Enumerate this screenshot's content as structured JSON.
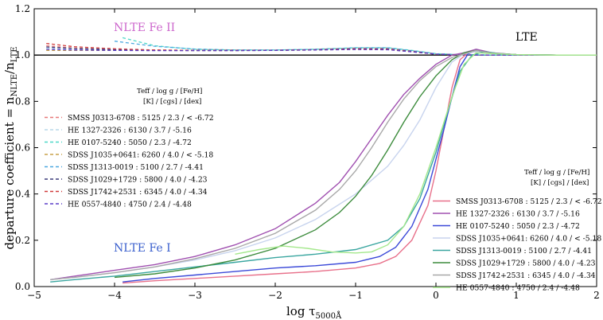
{
  "chart_data": {
    "type": "line",
    "xlabel_prefix": "log τ",
    "xlabel_sub": "5000Å",
    "ylabel_prefix": "departure coefficient = n",
    "ylabel_sub1": "NLTE",
    "ylabel_mid": "/n",
    "ylabel_sub2": "LTE",
    "xlim": [
      -5,
      2
    ],
    "ylim": [
      0.0,
      1.2
    ],
    "xticks": [
      "−5",
      "−4",
      "−3",
      "−2",
      "−1",
      "0",
      "1",
      "2"
    ],
    "xtick_values": [
      -5,
      -4,
      -3,
      -2,
      -1,
      0,
      1,
      2
    ],
    "yticks": [
      "0.0",
      "0.2",
      "0.4",
      "0.6",
      "0.8",
      "1.0",
      "1.2"
    ],
    "ytick_values": [
      0.0,
      0.2,
      0.4,
      0.6,
      0.8,
      1.0,
      1.2
    ],
    "annotations": {
      "fe2": {
        "text": "NLTE Fe II",
        "color": "#cc66cc"
      },
      "fe1": {
        "text": "NLTE Fe I",
        "color": "#3a5fcd"
      },
      "lte": {
        "text": "LTE",
        "color": "#000000"
      }
    },
    "legend_header": {
      "line1": "Teff  /  log g  /  [Fe/H]",
      "line2": "[K]  /  [cgs]  /  [dex]"
    },
    "fe2_series": [
      {
        "name": "SMSS J0313-6708 : 5125 / 2.3 / < -6.72",
        "color": "#e87979",
        "x": [
          -4.85,
          -4.5,
          -4,
          -3.5,
          -3,
          -2.5,
          -2,
          -1.5,
          -1,
          -0.6,
          -0.3,
          0,
          0.3,
          0.5,
          0.7,
          1,
          1.5,
          2
        ],
        "y": [
          1.04,
          1.03,
          1.025,
          1.022,
          1.02,
          1.02,
          1.021,
          1.024,
          1.03,
          1.03,
          1.018,
          1.005,
          1.002,
          1.001,
          1.0,
          1.0,
          1.0,
          1.0
        ]
      },
      {
        "name": "HE 1327-2326 : 6130 / 3.7 / -5.16",
        "color": "#b9d9e8",
        "x": [
          -4.85,
          -4.5,
          -4,
          -3.5,
          -3,
          -2.5,
          -2,
          -1.5,
          -1,
          -0.6,
          -0.3,
          0,
          0.3,
          0.5,
          0.7,
          1,
          1.5,
          2
        ],
        "y": [
          1.03,
          1.028,
          1.024,
          1.021,
          1.02,
          1.02,
          1.021,
          1.024,
          1.028,
          1.026,
          1.016,
          1.004,
          1.002,
          1.001,
          1.0,
          1.0,
          1.0,
          1.0
        ]
      },
      {
        "name": "HE 0107-5240 : 5050 / 2.3 / -4.72",
        "color": "#4fd8c8",
        "x": [
          -3.9,
          -3.5,
          -3,
          -2.5,
          -2,
          -1.5,
          -1,
          -0.6,
          -0.3,
          0,
          0.3,
          0.5,
          0.7,
          1,
          1.5,
          2
        ],
        "y": [
          1.075,
          1.04,
          1.025,
          1.022,
          1.022,
          1.025,
          1.032,
          1.032,
          1.02,
          1.006,
          1.002,
          1.001,
          1.0,
          1.0,
          1.0,
          1.0
        ]
      },
      {
        "name": "SDSS J1035+0641: 6260 / 4.0 / < -5.18",
        "color": "#c9a24a",
        "x": [
          -4.85,
          -4.5,
          -4,
          -3.5,
          -3,
          -2.5,
          -2,
          -1.5,
          -1,
          -0.6,
          -0.3,
          0,
          0.3,
          0.5,
          0.7,
          1,
          1.5,
          2
        ],
        "y": [
          1.02,
          1.02,
          1.02,
          1.02,
          1.019,
          1.019,
          1.02,
          1.022,
          1.025,
          1.024,
          1.014,
          1.004,
          1.001,
          1.0,
          1.0,
          1.0,
          1.0,
          1.0
        ]
      },
      {
        "name": "SDSS J1313-0019 : 5100 / 2.7 / -4.41",
        "color": "#4aa8e0",
        "x": [
          -4.0,
          -3.5,
          -3,
          -2.5,
          -2,
          -1.5,
          -1,
          -0.6,
          -0.3,
          0,
          0.3,
          0.5,
          0.7,
          1,
          1.5,
          2
        ],
        "y": [
          1.06,
          1.038,
          1.026,
          1.022,
          1.022,
          1.025,
          1.031,
          1.031,
          1.019,
          1.005,
          1.002,
          1.001,
          1.0,
          1.0,
          1.0,
          1.0
        ]
      },
      {
        "name": "SDSS J1029+1729 : 5800 / 4.0 / -4.23",
        "color": "#3b3b7a",
        "x": [
          -4.85,
          -4.5,
          -4,
          -3.5,
          -3,
          -2.5,
          -2,
          -1.5,
          -1,
          -0.6,
          -0.3,
          0,
          0.3,
          0.5,
          0.7,
          1,
          1.5,
          2
        ],
        "y": [
          1.035,
          1.028,
          1.023,
          1.021,
          1.02,
          1.02,
          1.021,
          1.023,
          1.027,
          1.026,
          1.016,
          1.004,
          1.001,
          1.0,
          1.0,
          1.0,
          1.0,
          1.0
        ]
      },
      {
        "name": "SDSS J1742+2531 : 6345 / 4.0 / -4.34",
        "color": "#d03a3a",
        "x": [
          -4.85,
          -4.5,
          -4,
          -3.5,
          -3,
          -2.5,
          -2,
          -1.5,
          -1,
          -0.6,
          -0.3,
          0,
          0.3,
          0.5,
          0.7,
          1,
          1.5,
          2
        ],
        "y": [
          1.05,
          1.036,
          1.027,
          1.022,
          1.02,
          1.02,
          1.021,
          1.023,
          1.027,
          1.025,
          1.015,
          1.004,
          1.001,
          1.0,
          1.0,
          1.0,
          1.0,
          1.0
        ]
      },
      {
        "name": "HE 0557-4840 : 4750 / 2.4 / -4.48",
        "color": "#5b3fc8",
        "x": [
          -4.85,
          -4.5,
          -4,
          -3.5,
          -3,
          -2.5,
          -2,
          -1.5,
          -1,
          -0.6,
          -0.3,
          0,
          0.3,
          0.5,
          0.7,
          1,
          1.5,
          2
        ],
        "y": [
          1.025,
          1.022,
          1.02,
          1.019,
          1.019,
          1.019,
          1.02,
          1.022,
          1.024,
          1.023,
          1.014,
          1.004,
          1.001,
          1.0,
          1.0,
          1.0,
          1.0,
          1.0
        ]
      }
    ],
    "fe1_series": [
      {
        "name": "SMSS J0313-6708 : 5125 / 2.3 / < -6.72",
        "color": "#e8708a",
        "x": [
          -3.9,
          -3.5,
          -3,
          -2.5,
          -2,
          -1.5,
          -1,
          -0.7,
          -0.5,
          -0.3,
          -0.1,
          0,
          0.1,
          0.2,
          0.3,
          0.4,
          0.5,
          0.7,
          1,
          1.5,
          2
        ],
        "y": [
          0.015,
          0.025,
          0.035,
          0.045,
          0.055,
          0.065,
          0.08,
          0.1,
          0.13,
          0.2,
          0.35,
          0.5,
          0.68,
          0.86,
          0.98,
          1.01,
          1.015,
          1.008,
          1.002,
          1.0,
          1.0
        ]
      },
      {
        "name": "HE 1327-2326 : 6130 / 3.7 / -5.16",
        "color": "#a050b0",
        "x": [
          -4.8,
          -4.5,
          -4,
          -3.5,
          -3,
          -2.5,
          -2,
          -1.5,
          -1.2,
          -1,
          -0.8,
          -0.6,
          -0.4,
          -0.2,
          0,
          0.2,
          0.35,
          0.5,
          0.7,
          1,
          1.5,
          2
        ],
        "y": [
          0.03,
          0.045,
          0.07,
          0.095,
          0.13,
          0.18,
          0.25,
          0.36,
          0.45,
          0.54,
          0.64,
          0.74,
          0.83,
          0.9,
          0.96,
          1.0,
          1.01,
          1.025,
          1.01,
          1.002,
          1.0,
          1.0
        ]
      },
      {
        "name": "HE 0107-5240 : 5050 / 2.3 / -4.72",
        "color": "#3b49d8",
        "x": [
          -3.9,
          -3.5,
          -3,
          -2.5,
          -2,
          -1.5,
          -1,
          -0.7,
          -0.5,
          -0.3,
          -0.1,
          0.1,
          0.2,
          0.3,
          0.4,
          0.5,
          0.7,
          1,
          1.5,
          2
        ],
        "y": [
          0.02,
          0.035,
          0.05,
          0.065,
          0.08,
          0.09,
          0.105,
          0.13,
          0.17,
          0.26,
          0.42,
          0.68,
          0.82,
          0.95,
          1.005,
          1.02,
          1.008,
          1.002,
          1.0,
          1.0
        ]
      },
      {
        "name": "SDSS J1035+0641: 6260 / 4.0 / < -5.18",
        "color": "#c8d4ee",
        "x": [
          -4.8,
          -4.5,
          -4,
          -3.5,
          -3,
          -2.5,
          -2,
          -1.5,
          -1,
          -0.6,
          -0.4,
          -0.2,
          0,
          0.2,
          0.35,
          0.5,
          0.7,
          1,
          1.5,
          2
        ],
        "y": [
          0.03,
          0.04,
          0.06,
          0.085,
          0.115,
          0.155,
          0.21,
          0.29,
          0.4,
          0.52,
          0.61,
          0.72,
          0.86,
          0.97,
          1.005,
          1.015,
          1.008,
          1.002,
          1.0,
          1.0
        ]
      },
      {
        "name": "SDSS J1313-0019 : 5100 / 2.7 / -4.41",
        "color": "#3aa6a0",
        "x": [
          -4.8,
          -4.5,
          -4,
          -3.5,
          -3,
          -2.5,
          -2,
          -1.5,
          -1,
          -0.6,
          -0.4,
          -0.2,
          0,
          0.15,
          0.3,
          0.45,
          0.6,
          0.8,
          1,
          1.5,
          2
        ],
        "y": [
          0.02,
          0.03,
          0.045,
          0.065,
          0.085,
          0.105,
          0.125,
          0.14,
          0.16,
          0.2,
          0.26,
          0.38,
          0.58,
          0.76,
          0.93,
          1.0,
          1.015,
          1.006,
          1.002,
          1.0,
          1.0
        ]
      },
      {
        "name": "SDSS J1029+1729 : 5800 / 4.0 / -4.23",
        "color": "#3d8c3d",
        "x": [
          -4.0,
          -3.5,
          -3,
          -2.5,
          -2,
          -1.5,
          -1.2,
          -1,
          -0.8,
          -0.6,
          -0.4,
          -0.2,
          0,
          0.2,
          0.35,
          0.5,
          0.7,
          1,
          1.5,
          2
        ],
        "y": [
          0.04,
          0.055,
          0.08,
          0.115,
          0.165,
          0.245,
          0.32,
          0.39,
          0.48,
          0.59,
          0.71,
          0.82,
          0.91,
          0.98,
          1.01,
          1.02,
          1.008,
          1.002,
          1.0,
          1.0
        ]
      },
      {
        "name": "SDSS J1742+2531 : 6345 / 4.0 / -4.34",
        "color": "#a8a8a8",
        "x": [
          -4.8,
          -4.5,
          -4,
          -3.5,
          -3,
          -2.5,
          -2,
          -1.5,
          -1.2,
          -1,
          -0.8,
          -0.6,
          -0.4,
          -0.2,
          0,
          0.2,
          0.35,
          0.5,
          0.7,
          1,
          1.5,
          2
        ],
        "y": [
          0.03,
          0.04,
          0.06,
          0.085,
          0.12,
          0.165,
          0.23,
          0.33,
          0.42,
          0.5,
          0.6,
          0.71,
          0.81,
          0.89,
          0.95,
          0.99,
          1.005,
          1.02,
          1.008,
          1.002,
          1.0,
          1.0
        ]
      },
      {
        "name": "HE 0557-4840 : 4750 / 2.4 / -4.48",
        "color": "#a4e88c",
        "x": [
          -2.5,
          -2.2,
          -1.9,
          -1.6,
          -1.3,
          -1.0,
          -0.8,
          -0.6,
          -0.4,
          -0.2,
          0,
          0.2,
          0.35,
          0.5,
          0.7,
          1,
          1.5,
          2
        ],
        "y": [
          0.14,
          0.16,
          0.175,
          0.165,
          0.15,
          0.145,
          0.15,
          0.18,
          0.26,
          0.4,
          0.6,
          0.82,
          0.96,
          1.01,
          1.006,
          1.002,
          1.0,
          1.0
        ]
      }
    ]
  }
}
